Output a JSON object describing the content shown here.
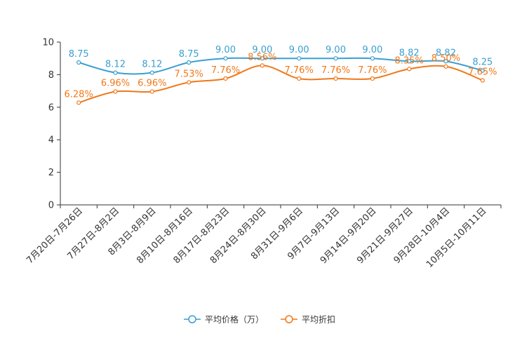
{
  "chart_data": {
    "type": "line",
    "categories": [
      "7月20日-7月26日",
      "7月27日-8月2日",
      "8月3日-8月9日",
      "8月10日-8月16日",
      "8月17日-8月23日",
      "8月24日-8月30日",
      "8月31日-9月6日",
      "9月7日-9月13日",
      "9月14日-9月20日",
      "9月21日-9月27日",
      "9月28日-10月4日",
      "10月5日-10月11日"
    ],
    "series": [
      {
        "name": "平均价格（万）",
        "color": "#3a9fd0",
        "values": [
          8.75,
          8.12,
          8.12,
          8.75,
          9.0,
          9.0,
          9.0,
          9.0,
          9.0,
          8.82,
          8.82,
          8.25
        ],
        "labels": [
          "8.75",
          "8.12",
          "8.12",
          "8.75",
          "9.00",
          "9.00",
          "9.00",
          "9.00",
          "9.00",
          "8.82",
          "8.82",
          "8.25"
        ]
      },
      {
        "name": "平均折扣",
        "color": "#f07819",
        "values": [
          6.28,
          6.96,
          6.96,
          7.53,
          7.76,
          8.56,
          7.76,
          7.76,
          7.76,
          8.35,
          8.5,
          7.65
        ],
        "labels": [
          "6.28%",
          "6.96%",
          "6.96%",
          "7.53%",
          "7.76%",
          "8.56%",
          "7.76%",
          "7.76%",
          "7.76%",
          "8.35%",
          "8.50%",
          "7.65%"
        ]
      }
    ],
    "yticks": [
      "0",
      "2",
      "4",
      "6",
      "8",
      "10"
    ],
    "ylim": [
      0,
      10
    ],
    "title": "",
    "xlabel": "",
    "ylabel": "",
    "legend_position": "bottom-center"
  }
}
